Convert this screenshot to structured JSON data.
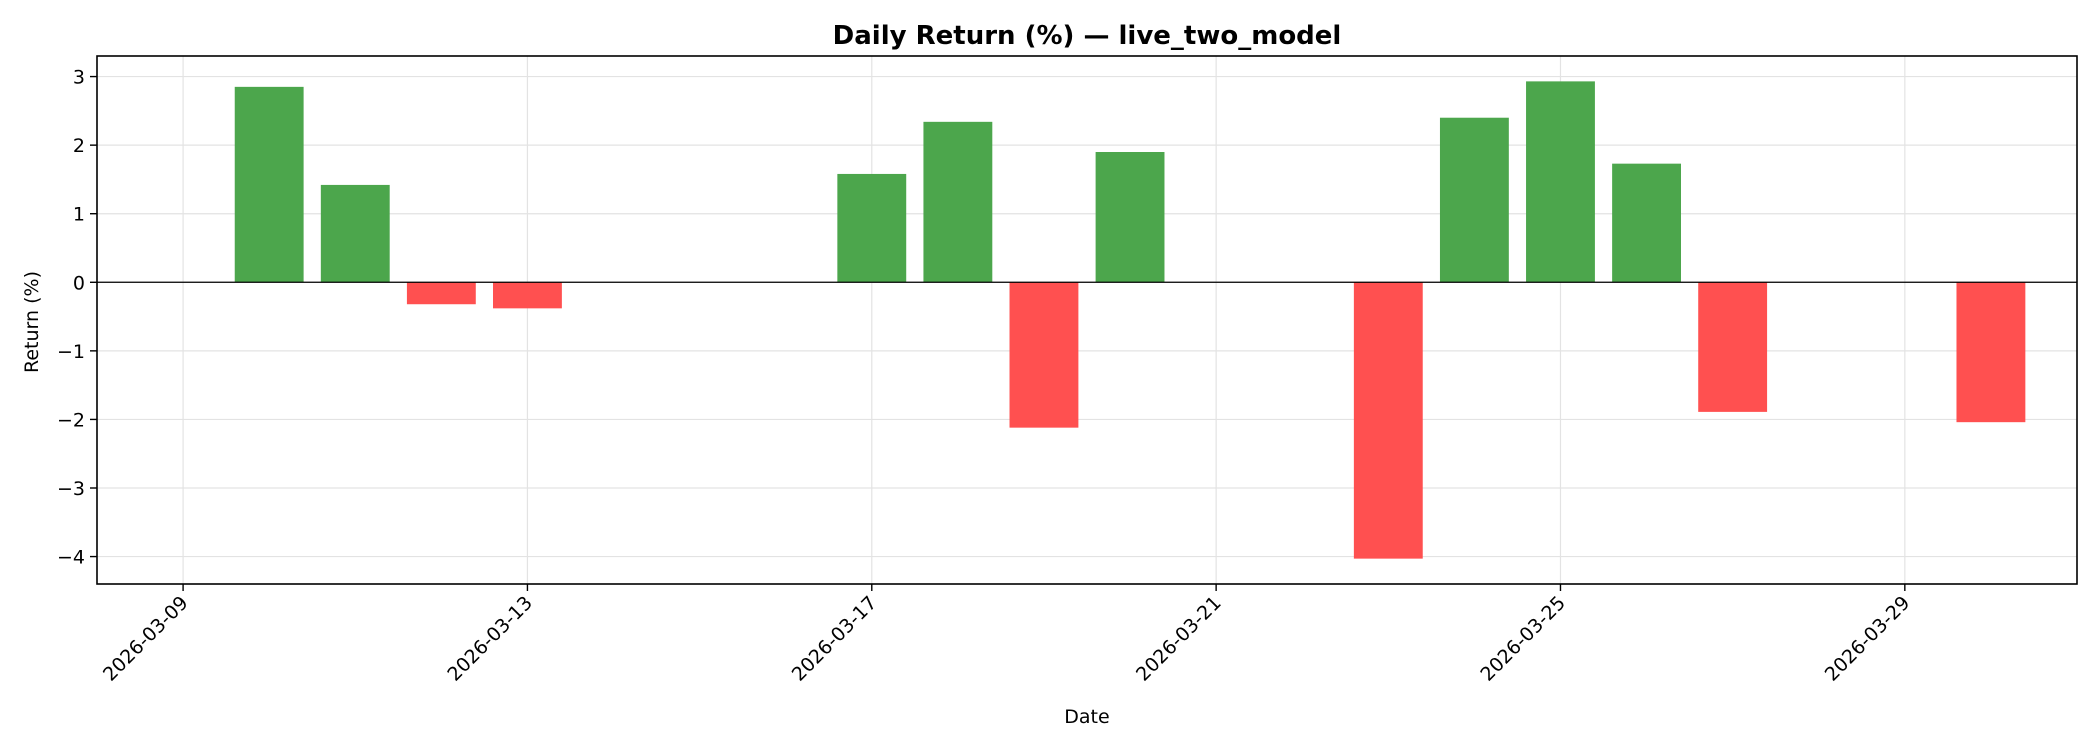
{
  "chart_data": {
    "type": "bar",
    "title": "Daily Return (%) — live_two_model",
    "xlabel": "Date",
    "ylabel": "Return (%)",
    "x": [
      "2026-03-10",
      "2026-03-11",
      "2026-03-12",
      "2026-03-13",
      "2026-03-17",
      "2026-03-18",
      "2026-03-19",
      "2026-03-20",
      "2026-03-23",
      "2026-03-24",
      "2026-03-25",
      "2026-03-26",
      "2026-03-27",
      "2026-03-30"
    ],
    "values": [
      2.85,
      1.42,
      -0.32,
      -0.38,
      1.58,
      2.34,
      -2.12,
      1.9,
      -4.03,
      2.4,
      2.93,
      1.73,
      -1.89,
      -2.04
    ],
    "xlim": [
      "2026-03-08",
      "2026-03-31"
    ],
    "ylim": [
      -4.4,
      3.3
    ],
    "yticks": [
      -4,
      -3,
      -2,
      -1,
      0,
      1,
      2,
      3
    ],
    "xticks": [
      "2026-03-09",
      "2026-03-13",
      "2026-03-17",
      "2026-03-21",
      "2026-03-25",
      "2026-03-29"
    ],
    "grid": true,
    "positive_color": "#4ca64c",
    "negative_color": "#ff5050"
  }
}
